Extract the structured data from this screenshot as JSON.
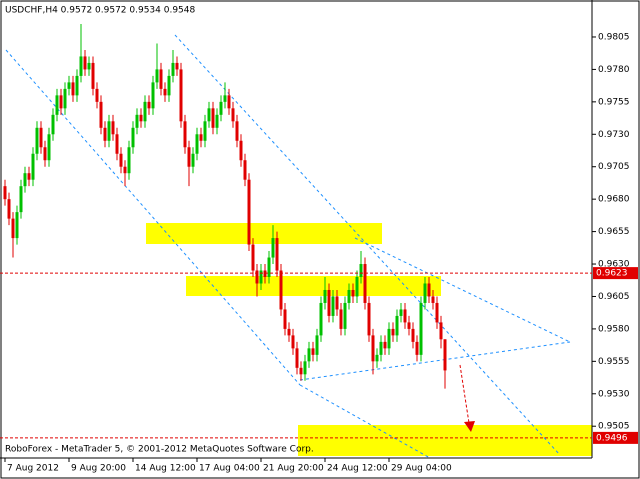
{
  "chart_data": {
    "type": "candlestick",
    "title": "USDCHF,H4  0.9572 0.9572 0.9534 0.9548",
    "footer": "RoboForex - MetaTrader 5, © 2001-2012 MetaQuotes Software Corp.",
    "up_color": "#00c000",
    "down_color": "#e00000",
    "ylim": [
      0.94805,
      0.98335
    ],
    "yticks": [
      0.9805,
      {
        "value": 0.978,
        "label": "0.9780"
      },
      0.9755,
      {
        "value": 0.973,
        "label": "0.9730"
      },
      0.9705,
      {
        "value": 0.968,
        "label": "0.9680"
      },
      0.9655,
      {
        "value": 0.963,
        "label": "0.9630"
      },
      0.9605,
      {
        "value": 0.958,
        "label": "0.9580"
      },
      0.9555,
      {
        "value": 0.953,
        "label": "0.9530"
      },
      0.9505
    ],
    "price_lines": [
      {
        "value": 0.9623,
        "color": "#e00000"
      },
      {
        "value": 0.9496,
        "color": "#e00000"
      }
    ],
    "categories": [
      "7 Aug 2012",
      null,
      null,
      null,
      null,
      null,
      null,
      null,
      null,
      null,
      null,
      null,
      null,
      null,
      null,
      null,
      "9 Aug 20:00",
      null,
      null,
      null,
      null,
      null,
      null,
      null,
      null,
      null,
      null,
      null,
      null,
      null,
      null,
      null,
      "14 Aug 12:00",
      null,
      null,
      null,
      null,
      null,
      null,
      null,
      null,
      null,
      null,
      null,
      null,
      null,
      null,
      null,
      "17 Aug 04:00",
      null,
      null,
      null,
      null,
      null,
      null,
      null,
      null,
      null,
      null,
      null,
      null,
      null,
      null,
      null,
      "21 Aug 20:00",
      null,
      null,
      null,
      null,
      null,
      null,
      null,
      null,
      null,
      null,
      null,
      null,
      null,
      null,
      null,
      "24 Aug 12:00",
      null,
      null,
      null,
      null,
      null,
      null,
      null,
      null,
      null,
      null,
      null,
      null,
      null,
      null,
      null,
      "29 Aug 04:00",
      null,
      null,
      null,
      null,
      null,
      null,
      null,
      null,
      null,
      null,
      null,
      null,
      null,
      null
    ],
    "open": [
      0.969,
      0.968,
      0.9665,
      0.965,
      0.967,
      0.969,
      0.97,
      0.9695,
      0.9715,
      0.9735,
      0.972,
      0.971,
      0.973,
      0.9745,
      0.976,
      0.975,
      0.9765,
      0.977,
      0.976,
      0.9775,
      0.979,
      0.978,
      0.9785,
      0.9765,
      0.9755,
      0.9735,
      0.9725,
      0.974,
      0.973,
      0.9715,
      0.9705,
      0.97,
      0.972,
      0.9735,
      0.9745,
      0.974,
      0.9755,
      0.975,
      0.977,
      0.978,
      0.9765,
      0.976,
      0.9775,
      0.9785,
      0.978,
      0.974,
      0.972,
      0.9705,
      0.9715,
      0.973,
      0.9725,
      0.974,
      0.975,
      0.9735,
      0.9745,
      0.9755,
      0.976,
      0.975,
      0.974,
      0.9725,
      0.971,
      0.9695,
      0.9645,
      0.9625,
      0.9615,
      0.9625,
      0.962,
      0.9635,
      0.965,
      0.9625,
      0.9595,
      0.958,
      0.9575,
      0.9565,
      0.955,
      0.9545,
      0.9555,
      0.9565,
      0.956,
      0.9575,
      0.96,
      0.961,
      0.959,
      0.9605,
      0.9595,
      0.958,
      0.96,
      0.961,
      0.9605,
      0.962,
      0.963,
      0.96,
      0.9575,
      0.9555,
      0.956,
      0.957,
      0.9565,
      0.958,
      0.9575,
      0.959,
      0.9595,
      0.9585,
      0.958,
      0.957,
      0.956,
      0.96,
      0.9615,
      0.9605,
      0.96,
      0.9585,
      0.9572
    ],
    "high": [
      0.9695,
      0.9685,
      0.967,
      0.9675,
      0.9695,
      0.9705,
      0.9705,
      0.972,
      0.974,
      0.974,
      0.9725,
      0.9735,
      0.975,
      0.9765,
      0.9765,
      0.977,
      0.9775,
      0.9775,
      0.978,
      0.9815,
      0.9795,
      0.979,
      0.979,
      0.977,
      0.976,
      0.974,
      0.9745,
      0.9745,
      0.9735,
      0.972,
      0.971,
      0.9725,
      0.974,
      0.975,
      0.975,
      0.976,
      0.976,
      0.9775,
      0.98,
      0.9785,
      0.977,
      0.978,
      0.9795,
      0.979,
      0.9785,
      0.9745,
      0.9725,
      0.972,
      0.9735,
      0.9735,
      0.9745,
      0.9755,
      0.9755,
      0.975,
      0.976,
      0.977,
      0.9765,
      0.9755,
      0.9745,
      0.973,
      0.9715,
      0.97,
      0.965,
      0.963,
      0.963,
      0.963,
      0.964,
      0.966,
      0.9655,
      0.963,
      0.96,
      0.9585,
      0.958,
      0.957,
      0.9555,
      0.956,
      0.957,
      0.957,
      0.958,
      0.9605,
      0.962,
      0.9615,
      0.961,
      0.961,
      0.96,
      0.9605,
      0.9615,
      0.9615,
      0.9625,
      0.964,
      0.9635,
      0.9605,
      0.958,
      0.9565,
      0.9575,
      0.9575,
      0.9585,
      0.9585,
      0.9595,
      0.96,
      0.96,
      0.959,
      0.9585,
      0.9575,
      0.9605,
      0.962,
      0.962,
      0.961,
      0.9605,
      0.959,
      0.9572
    ],
    "low": [
      0.9675,
      0.966,
      0.9635,
      0.9645,
      0.9665,
      0.9685,
      0.969,
      0.969,
      0.971,
      0.9715,
      0.9705,
      0.9705,
      0.9725,
      0.974,
      0.9745,
      0.9745,
      0.976,
      0.9755,
      0.9755,
      0.977,
      0.9775,
      0.9775,
      0.976,
      0.975,
      0.973,
      0.972,
      0.972,
      0.9725,
      0.971,
      0.97,
      0.969,
      0.9695,
      0.9715,
      0.973,
      0.9735,
      0.9735,
      0.9745,
      0.9745,
      0.9765,
      0.976,
      0.9755,
      0.9755,
      0.977,
      0.9775,
      0.9735,
      0.9715,
      0.969,
      0.97,
      0.971,
      0.972,
      0.972,
      0.9735,
      0.973,
      0.973,
      0.974,
      0.975,
      0.9745,
      0.9735,
      0.972,
      0.9705,
      0.969,
      0.964,
      0.962,
      0.9605,
      0.961,
      0.9615,
      0.9615,
      0.963,
      0.962,
      0.959,
      0.9575,
      0.957,
      0.956,
      0.9545,
      0.954,
      0.954,
      0.955,
      0.9555,
      0.9555,
      0.957,
      0.9595,
      0.9585,
      0.9585,
      0.959,
      0.9575,
      0.9575,
      0.9595,
      0.96,
      0.96,
      0.9615,
      0.9595,
      0.957,
      0.9545,
      0.955,
      0.9555,
      0.956,
      0.956,
      0.957,
      0.957,
      0.9585,
      0.958,
      0.9575,
      0.9565,
      0.9555,
      0.9555,
      0.9595,
      0.96,
      0.9595,
      0.958,
      0.9565,
      0.9534
    ],
    "close": [
      0.968,
      0.9665,
      0.965,
      0.967,
      0.969,
      0.97,
      0.9695,
      0.9715,
      0.9735,
      0.972,
      0.971,
      0.973,
      0.9745,
      0.976,
      0.975,
      0.9765,
      0.977,
      0.976,
      0.9775,
      0.979,
      0.978,
      0.9785,
      0.9765,
      0.9755,
      0.9735,
      0.9725,
      0.974,
      0.973,
      0.9715,
      0.9705,
      0.97,
      0.972,
      0.9735,
      0.9745,
      0.974,
      0.9755,
      0.975,
      0.977,
      0.978,
      0.9765,
      0.976,
      0.9775,
      0.9785,
      0.978,
      0.974,
      0.972,
      0.9705,
      0.9715,
      0.973,
      0.9725,
      0.974,
      0.975,
      0.9735,
      0.9745,
      0.9755,
      0.976,
      0.975,
      0.974,
      0.9725,
      0.971,
      0.9695,
      0.9645,
      0.9625,
      0.9615,
      0.9625,
      0.962,
      0.9635,
      0.965,
      0.9625,
      0.9595,
      0.958,
      0.9575,
      0.9565,
      0.955,
      0.9545,
      0.9555,
      0.9565,
      0.956,
      0.9575,
      0.96,
      0.961,
      0.959,
      0.9605,
      0.9595,
      0.958,
      0.96,
      0.961,
      0.9605,
      0.962,
      0.963,
      0.96,
      0.9575,
      0.9555,
      0.956,
      0.957,
      0.9565,
      0.958,
      0.9575,
      0.959,
      0.9595,
      0.9585,
      0.958,
      0.957,
      0.956,
      0.96,
      0.9615,
      0.9605,
      0.96,
      0.9585,
      0.9572,
      0.9548
    ]
  }
}
